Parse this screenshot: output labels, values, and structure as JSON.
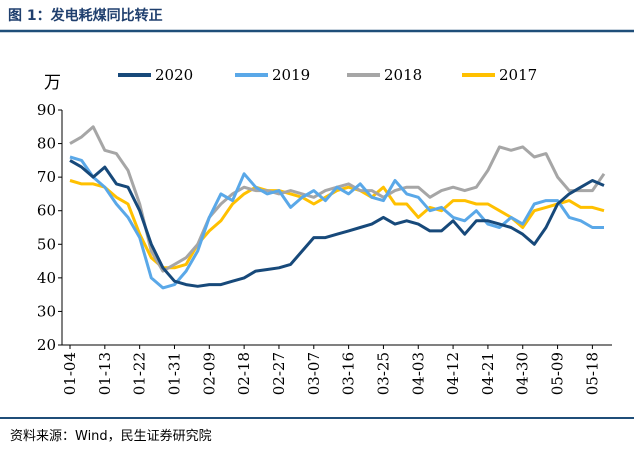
{
  "header": {
    "title": "图 1：发电耗煤同比转正"
  },
  "chart_data": {
    "type": "line",
    "y_unit": "万",
    "categories": [
      "01-04",
      null,
      null,
      "01-13",
      null,
      null,
      "01-22",
      null,
      null,
      "01-31",
      null,
      null,
      "02-09",
      null,
      null,
      "02-18",
      null,
      null,
      "02-27",
      null,
      null,
      "03-07",
      null,
      null,
      "03-16",
      null,
      null,
      "03-25",
      null,
      null,
      "04-03",
      null,
      null,
      "04-12",
      null,
      null,
      "04-21",
      null,
      null,
      "04-30",
      null,
      null,
      "05-09",
      null,
      null,
      "05-18",
      null
    ],
    "series": [
      {
        "name": "2020",
        "color": "#17497a",
        "values": [
          75,
          73,
          70,
          73,
          68,
          67,
          60,
          50,
          43,
          39,
          38,
          37.5,
          38,
          38,
          39,
          40,
          42,
          42.5,
          43,
          44,
          48,
          52,
          52,
          53,
          54,
          55,
          56,
          58,
          56,
          57,
          56,
          54,
          54,
          57,
          53,
          57,
          57,
          56,
          55,
          53,
          50,
          55,
          62,
          65,
          67,
          69,
          67.5
        ]
      },
      {
        "name": "2019",
        "color": "#5aa8e8",
        "values": [
          76,
          75,
          70,
          67,
          62,
          58,
          52,
          40,
          37,
          38,
          42,
          48,
          58,
          65,
          63,
          71,
          67,
          65,
          66,
          61,
          64,
          66,
          63,
          67,
          65,
          68,
          64,
          63,
          69,
          65,
          64,
          60,
          61,
          58,
          57,
          60,
          56,
          55,
          58,
          56,
          62,
          63,
          63,
          58,
          57,
          55,
          55
        ]
      },
      {
        "name": "2018",
        "color": "#a6a6a6",
        "values": [
          80,
          82,
          85,
          78,
          77,
          72,
          62,
          48,
          42,
          44,
          46,
          50,
          58,
          62,
          65,
          67,
          66,
          66,
          65,
          66,
          65,
          64,
          66,
          67,
          68,
          66,
          66,
          64,
          66,
          67,
          67,
          64,
          66,
          67,
          66,
          67,
          72,
          79,
          78,
          79,
          76,
          77,
          70,
          66,
          66,
          66,
          71
        ]
      },
      {
        "name": "2017",
        "color": "#ffc000",
        "values": [
          69,
          68,
          68,
          67,
          64,
          62,
          53,
          46,
          43,
          43,
          44,
          50,
          54,
          57,
          62,
          65,
          67,
          66,
          66,
          65,
          64,
          62,
          64,
          66,
          67,
          66,
          64,
          67,
          62,
          62,
          58,
          61,
          60,
          63,
          63,
          62,
          62,
          60,
          58,
          55,
          60,
          61,
          62,
          63,
          61,
          61,
          60
        ]
      }
    ],
    "ylim": [
      20,
      90
    ],
    "yticks": [
      20,
      30,
      40,
      50,
      60,
      70,
      80,
      90
    ],
    "legend": "top"
  },
  "footer": {
    "source": "资料来源：Wind，民生证券研究院"
  }
}
